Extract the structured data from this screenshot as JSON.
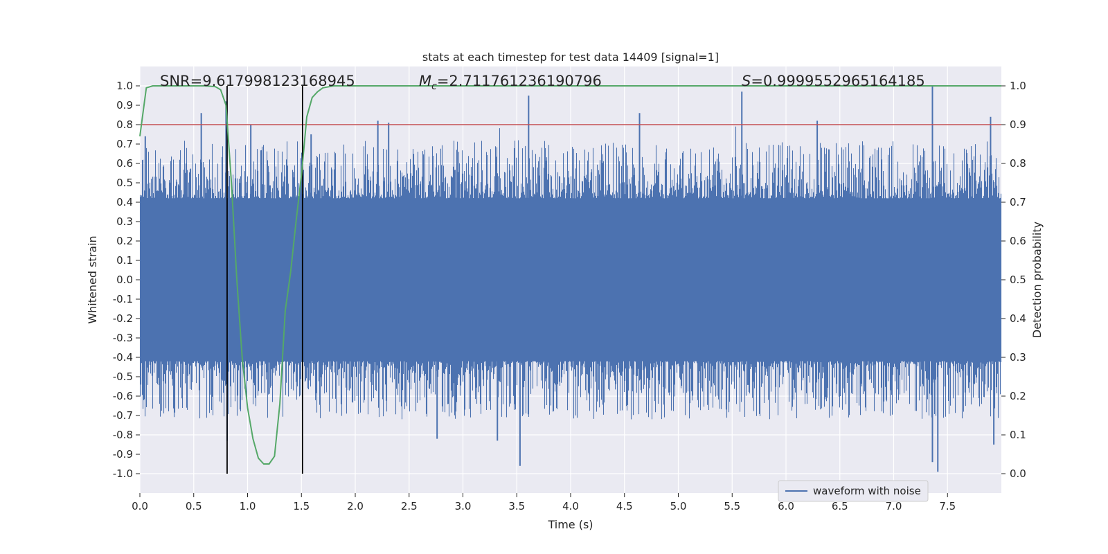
{
  "chart_data": {
    "type": "line",
    "title": "stats at each timestep for test data 14409 [signal=1]",
    "xlabel": "Time (s)",
    "ylabel_left": "Whitened strain",
    "ylabel_right": "Detection probability",
    "xlim": [
      0.0,
      8.0
    ],
    "ylim_left": [
      -1.1,
      1.1
    ],
    "ylim_right": [
      -0.05,
      1.05
    ],
    "x_ticks": [
      "0.0",
      "0.5",
      "1.0",
      "1.5",
      "2.0",
      "2.5",
      "3.0",
      "3.5",
      "4.0",
      "4.5",
      "5.0",
      "5.5",
      "6.0",
      "6.5",
      "7.0",
      "7.5"
    ],
    "y_left_ticks": [
      "1.0",
      "0.9",
      "0.8",
      "0.7",
      "0.6",
      "0.5",
      "0.4",
      "0.3",
      "0.2",
      "0.1",
      "0.0",
      "-0.1",
      "-0.2",
      "-0.3",
      "-0.4",
      "-0.5",
      "-0.6",
      "-0.7",
      "-0.8",
      "-0.9",
      "-1.0"
    ],
    "y_right_ticks": [
      "1.0",
      "0.9",
      "0.8",
      "0.7",
      "0.6",
      "0.5",
      "0.4",
      "0.3",
      "0.2",
      "0.1",
      "0.0"
    ],
    "annotations": {
      "snr": "SNR=9.617998123168945",
      "mc_symbol": "M",
      "mc_sub": "c",
      "mc_value": "=2.711761236190796",
      "s_symbol": "S",
      "s_value": "=0.9999552965164185"
    },
    "threshold": {
      "value": 0.8,
      "axis": "left",
      "color": "#c44e52"
    },
    "vertical_markers": {
      "x": [
        0.81,
        1.51
      ],
      "y_range": [
        -1.0,
        1.0
      ],
      "color": "#000000"
    },
    "waveform": {
      "name": "waveform with noise",
      "color": "#4c72b0",
      "dense_band": [
        -0.4,
        0.4
      ],
      "positive_peaks": [
        {
          "x": 0.05,
          "y": 0.74
        },
        {
          "x": 0.57,
          "y": 0.86
        },
        {
          "x": 0.8,
          "y": 0.92
        },
        {
          "x": 1.03,
          "y": 0.8
        },
        {
          "x": 1.59,
          "y": 0.75
        },
        {
          "x": 2.21,
          "y": 0.82
        },
        {
          "x": 2.31,
          "y": 0.81
        },
        {
          "x": 3.61,
          "y": 0.95
        },
        {
          "x": 4.64,
          "y": 0.86
        },
        {
          "x": 5.59,
          "y": 0.97
        },
        {
          "x": 6.29,
          "y": 0.82
        },
        {
          "x": 7.36,
          "y": 1.0
        },
        {
          "x": 7.9,
          "y": 0.84
        }
      ],
      "negative_peaks": [
        {
          "x": 0.81,
          "y": -0.83
        },
        {
          "x": 2.76,
          "y": -0.82
        },
        {
          "x": 3.32,
          "y": -0.83
        },
        {
          "x": 3.53,
          "y": -0.96
        },
        {
          "x": 7.36,
          "y": -0.94
        },
        {
          "x": 7.41,
          "y": -0.99
        },
        {
          "x": 7.93,
          "y": -0.85
        }
      ]
    },
    "detection_probability": {
      "color": "#55a868",
      "x": [
        0.0,
        0.06,
        0.12,
        0.2,
        0.4,
        0.6,
        0.7,
        0.75,
        0.8,
        0.85,
        0.9,
        0.95,
        1.0,
        1.05,
        1.1,
        1.15,
        1.2,
        1.25,
        1.3,
        1.35,
        1.4,
        1.45,
        1.5,
        1.55,
        1.6,
        1.65,
        1.7,
        1.8,
        1.9,
        2.0,
        8.0
      ],
      "y": [
        0.87,
        0.995,
        1.0,
        1.0,
        1.0,
        1.0,
        0.998,
        0.99,
        0.95,
        0.75,
        0.5,
        0.3,
        0.17,
        0.09,
        0.04,
        0.025,
        0.025,
        0.045,
        0.18,
        0.42,
        0.52,
        0.65,
        0.77,
        0.92,
        0.97,
        0.985,
        0.995,
        1.0,
        1.0,
        1.0,
        1.0
      ]
    },
    "legend": {
      "position": "lower-right",
      "entries": [
        "waveform with noise"
      ]
    },
    "grid": true
  }
}
